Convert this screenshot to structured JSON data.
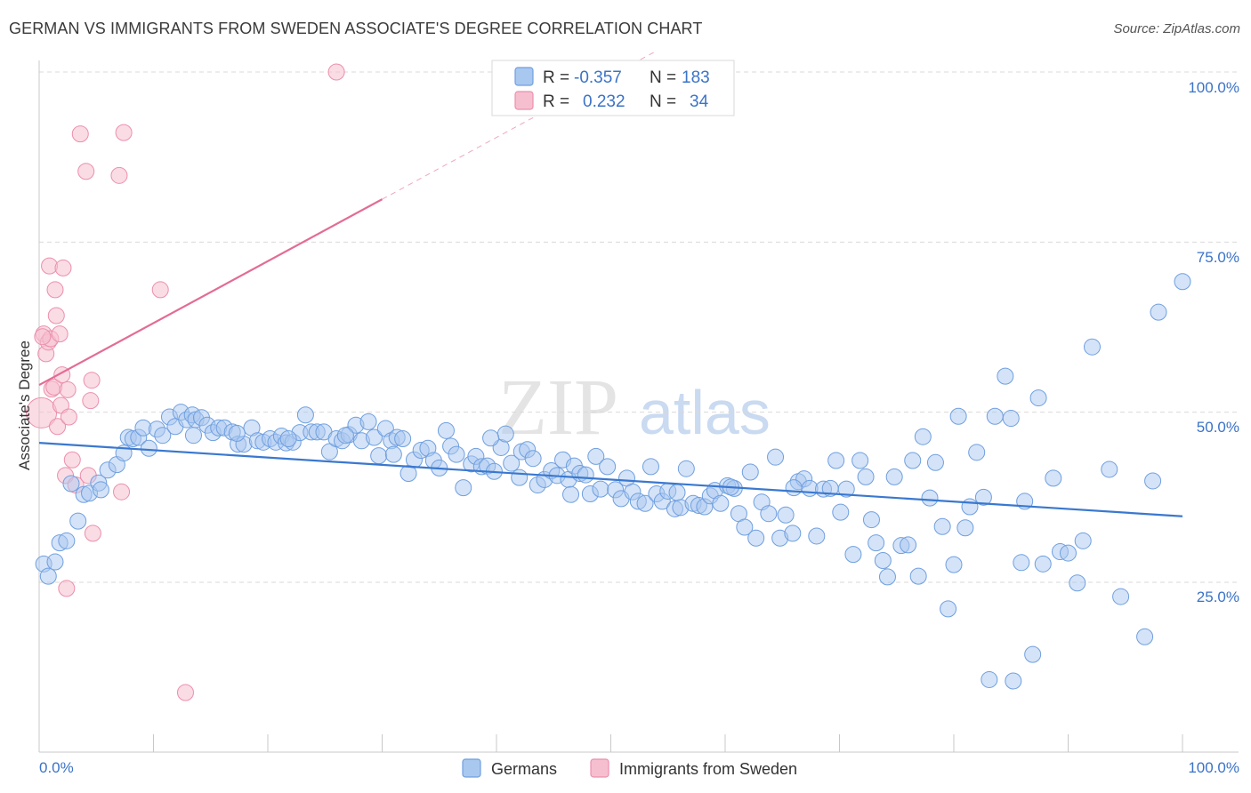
{
  "title": "GERMAN VS IMMIGRANTS FROM SWEDEN ASSOCIATE'S DEGREE CORRELATION CHART",
  "source": "Source: ZipAtlas.com",
  "watermark": {
    "zip": "ZIP",
    "atlas": "atlas"
  },
  "legend": {
    "r_label": "R =",
    "n_label": "N =",
    "series": [
      {
        "r": "-0.357",
        "n": "183"
      },
      {
        "r": "0.232",
        "n": "34"
      }
    ]
  },
  "bottom_legend": [
    "Germans",
    "Immigrants from Sweden"
  ],
  "colors": {
    "blue_fill": "#a9c8ef",
    "blue_stroke": "#6f9fe0",
    "blue_line": "#3a78cf",
    "pink_fill": "#f6bfd0",
    "pink_stroke": "#ec8fac",
    "pink_line": "#e36c95",
    "tick_text": "#3b73c7",
    "grid": "#d9d9d9"
  },
  "chart_data": {
    "type": "scatter",
    "title": "GERMAN VS IMMIGRANTS FROM SWEDEN ASSOCIATE'S DEGREE CORRELATION CHART",
    "xlabel": "",
    "ylabel": "Associate's Degree",
    "xlim": [
      0,
      100
    ],
    "ylim": [
      0,
      103
    ],
    "x_tick_labels": [
      "0.0%",
      "100.0%"
    ],
    "y_tick_labels": [
      "25.0%",
      "50.0%",
      "75.0%",
      "100.0%"
    ],
    "y_ticks": [
      25,
      50,
      75,
      100
    ],
    "grid": "horizontal dashed",
    "legend_position": "top-center",
    "series": [
      {
        "name": "Germans",
        "color": "#a9c8ef",
        "r": -0.357,
        "n": 183,
        "trend": {
          "x": [
            0,
            100
          ],
          "y": [
            45.5,
            34.7
          ]
        },
        "points": [
          [
            0.4,
            27.7
          ],
          [
            0.8,
            25.9
          ],
          [
            1.4,
            28.0
          ],
          [
            1.8,
            30.8
          ],
          [
            2.4,
            31.1
          ],
          [
            2.8,
            39.5
          ],
          [
            3.4,
            34.0
          ],
          [
            3.9,
            37.9
          ],
          [
            4.4,
            38.1
          ],
          [
            5.2,
            39.6
          ],
          [
            5.4,
            38.6
          ],
          [
            6.0,
            41.5
          ],
          [
            6.8,
            42.3
          ],
          [
            7.4,
            44.0
          ],
          [
            7.8,
            46.3
          ],
          [
            8.2,
            46.1
          ],
          [
            8.7,
            46.3
          ],
          [
            9.1,
            47.7
          ],
          [
            9.6,
            44.7
          ],
          [
            10.3,
            47.5
          ],
          [
            10.8,
            46.6
          ],
          [
            11.4,
            49.3
          ],
          [
            11.9,
            47.9
          ],
          [
            12.4,
            50.0
          ],
          [
            12.9,
            48.9
          ],
          [
            13.4,
            49.6
          ],
          [
            13.7,
            48.9
          ],
          [
            14.2,
            49.2
          ],
          [
            14.7,
            48.1
          ],
          [
            15.2,
            47.0
          ],
          [
            15.7,
            47.7
          ],
          [
            16.2,
            47.7
          ],
          [
            16.9,
            47.1
          ],
          [
            17.4,
            45.3
          ],
          [
            17.9,
            45.3
          ],
          [
            18.6,
            47.7
          ],
          [
            19.1,
            45.8
          ],
          [
            19.6,
            45.6
          ],
          [
            20.2,
            46.1
          ],
          [
            20.7,
            45.6
          ],
          [
            21.2,
            46.5
          ],
          [
            21.6,
            45.5
          ],
          [
            22.2,
            45.6
          ],
          [
            22.8,
            47.0
          ],
          [
            23.3,
            49.6
          ],
          [
            23.8,
            47.1
          ],
          [
            24.3,
            47.1
          ],
          [
            24.9,
            47.1
          ],
          [
            25.4,
            44.2
          ],
          [
            26.0,
            46.1
          ],
          [
            26.5,
            45.8
          ],
          [
            27.1,
            46.7
          ],
          [
            27.7,
            48.1
          ],
          [
            28.2,
            45.8
          ],
          [
            28.8,
            48.6
          ],
          [
            29.3,
            46.3
          ],
          [
            29.7,
            43.6
          ],
          [
            30.3,
            47.6
          ],
          [
            30.8,
            45.8
          ],
          [
            31.3,
            46.3
          ],
          [
            31.8,
            46.1
          ],
          [
            32.3,
            41.0
          ],
          [
            32.8,
            43.0
          ],
          [
            33.4,
            44.4
          ],
          [
            34.0,
            44.7
          ],
          [
            34.5,
            42.9
          ],
          [
            35.0,
            41.8
          ],
          [
            35.6,
            47.3
          ],
          [
            36.0,
            45.0
          ],
          [
            36.5,
            43.8
          ],
          [
            37.1,
            38.9
          ],
          [
            37.8,
            42.4
          ],
          [
            38.2,
            43.5
          ],
          [
            38.7,
            42.0
          ],
          [
            39.2,
            42.1
          ],
          [
            39.8,
            41.3
          ],
          [
            40.4,
            44.8
          ],
          [
            40.8,
            46.8
          ],
          [
            41.3,
            42.5
          ],
          [
            42.2,
            44.2
          ],
          [
            42.7,
            44.5
          ],
          [
            43.2,
            43.2
          ],
          [
            43.6,
            39.3
          ],
          [
            44.2,
            40.1
          ],
          [
            44.8,
            41.4
          ],
          [
            45.3,
            40.7
          ],
          [
            45.8,
            43.0
          ],
          [
            46.3,
            40.1
          ],
          [
            46.8,
            42.1
          ],
          [
            47.3,
            41.0
          ],
          [
            47.8,
            40.8
          ],
          [
            48.2,
            38.0
          ],
          [
            48.7,
            43.5
          ],
          [
            49.1,
            38.7
          ],
          [
            49.7,
            42.0
          ],
          [
            50.4,
            38.6
          ],
          [
            50.9,
            37.3
          ],
          [
            51.4,
            40.3
          ],
          [
            51.9,
            38.3
          ],
          [
            52.4,
            36.9
          ],
          [
            53.0,
            36.6
          ],
          [
            53.5,
            42.0
          ],
          [
            54.0,
            38.0
          ],
          [
            54.5,
            36.9
          ],
          [
            55.0,
            38.4
          ],
          [
            55.6,
            35.8
          ],
          [
            56.1,
            36.0
          ],
          [
            56.6,
            41.7
          ],
          [
            57.2,
            36.6
          ],
          [
            57.7,
            36.3
          ],
          [
            58.2,
            36.1
          ],
          [
            58.7,
            37.7
          ],
          [
            59.1,
            38.5
          ],
          [
            59.6,
            36.6
          ],
          [
            60.2,
            39.2
          ],
          [
            60.8,
            38.8
          ],
          [
            61.2,
            35.1
          ],
          [
            61.7,
            33.1
          ],
          [
            62.2,
            41.2
          ],
          [
            62.7,
            31.5
          ],
          [
            63.2,
            36.8
          ],
          [
            63.8,
            35.1
          ],
          [
            64.4,
            43.4
          ],
          [
            64.8,
            31.5
          ],
          [
            65.3,
            34.9
          ],
          [
            65.9,
            32.2
          ],
          [
            66.4,
            39.8
          ],
          [
            66.9,
            40.2
          ],
          [
            67.4,
            38.8
          ],
          [
            68.0,
            31.8
          ],
          [
            68.6,
            38.7
          ],
          [
            69.2,
            38.8
          ],
          [
            69.7,
            42.9
          ],
          [
            70.1,
            35.3
          ],
          [
            70.6,
            38.7
          ],
          [
            71.2,
            29.1
          ],
          [
            71.8,
            42.9
          ],
          [
            72.3,
            40.5
          ],
          [
            72.8,
            34.2
          ],
          [
            73.2,
            30.8
          ],
          [
            73.8,
            28.2
          ],
          [
            74.2,
            25.8
          ],
          [
            74.8,
            40.5
          ],
          [
            75.4,
            30.4
          ],
          [
            76.4,
            42.9
          ],
          [
            76.9,
            25.9
          ],
          [
            77.3,
            46.4
          ],
          [
            77.9,
            37.4
          ],
          [
            78.4,
            42.6
          ],
          [
            79.0,
            33.2
          ],
          [
            79.5,
            21.1
          ],
          [
            80.0,
            27.6
          ],
          [
            80.4,
            49.4
          ],
          [
            81.0,
            33.0
          ],
          [
            81.4,
            36.1
          ],
          [
            82.0,
            44.1
          ],
          [
            82.6,
            37.5
          ],
          [
            83.1,
            10.7
          ],
          [
            84.5,
            55.3
          ],
          [
            85.0,
            49.1
          ],
          [
            85.2,
            10.5
          ],
          [
            85.9,
            27.9
          ],
          [
            86.9,
            14.4
          ],
          [
            87.4,
            52.1
          ],
          [
            87.8,
            27.7
          ],
          [
            89.3,
            29.5
          ],
          [
            90.8,
            24.9
          ],
          [
            91.3,
            31.1
          ],
          [
            92.1,
            59.6
          ],
          [
            96.7,
            17.0
          ],
          [
            97.4,
            39.9
          ],
          [
            97.9,
            64.7
          ],
          [
            100.0,
            69.2
          ],
          [
            17.3,
            46.9
          ],
          [
            21.8,
            46.1
          ],
          [
            26.8,
            46.6
          ],
          [
            31.0,
            43.8
          ],
          [
            39.5,
            46.2
          ],
          [
            42.0,
            40.4
          ],
          [
            46.5,
            37.9
          ],
          [
            55.8,
            38.2
          ],
          [
            60.5,
            39.0
          ],
          [
            66.0,
            38.9
          ],
          [
            76.0,
            30.5
          ],
          [
            83.6,
            49.4
          ],
          [
            86.2,
            36.9
          ],
          [
            88.7,
            40.3
          ],
          [
            90.0,
            29.3
          ],
          [
            93.6,
            41.6
          ],
          [
            94.6,
            22.9
          ],
          [
            13.5,
            46.6
          ]
        ]
      },
      {
        "name": "Immigrants from Sweden",
        "color": "#f6bfd0",
        "r": 0.232,
        "n": 34,
        "trend": {
          "x": [
            0,
            30
          ],
          "y": [
            54.0,
            81.3
          ],
          "dashed_extension": {
            "x": [
              30,
              100
            ],
            "y": [
              81.3,
              144.9
            ]
          }
        },
        "points": [
          [
            0.2,
            49.9
          ],
          [
            0.4,
            61.5
          ],
          [
            0.6,
            58.6
          ],
          [
            0.8,
            60.3
          ],
          [
            0.9,
            71.5
          ],
          [
            1.0,
            60.8
          ],
          [
            1.1,
            53.4
          ],
          [
            1.3,
            53.7
          ],
          [
            1.4,
            68.0
          ],
          [
            1.5,
            64.2
          ],
          [
            1.6,
            47.9
          ],
          [
            1.8,
            61.5
          ],
          [
            1.9,
            51.0
          ],
          [
            2.0,
            55.5
          ],
          [
            2.1,
            71.2
          ],
          [
            2.3,
            40.7
          ],
          [
            2.4,
            24.1
          ],
          [
            2.5,
            53.3
          ],
          [
            2.6,
            49.3
          ],
          [
            2.9,
            43.0
          ],
          [
            3.2,
            39.3
          ],
          [
            3.6,
            90.9
          ],
          [
            4.1,
            85.4
          ],
          [
            4.3,
            40.7
          ],
          [
            4.5,
            51.7
          ],
          [
            4.6,
            54.7
          ],
          [
            4.7,
            32.2
          ],
          [
            7.0,
            84.8
          ],
          [
            7.2,
            38.3
          ],
          [
            7.4,
            91.1
          ],
          [
            10.6,
            68.0
          ],
          [
            12.8,
            8.8
          ],
          [
            26.0,
            100.0
          ],
          [
            0.3,
            61.1
          ]
        ]
      }
    ]
  }
}
